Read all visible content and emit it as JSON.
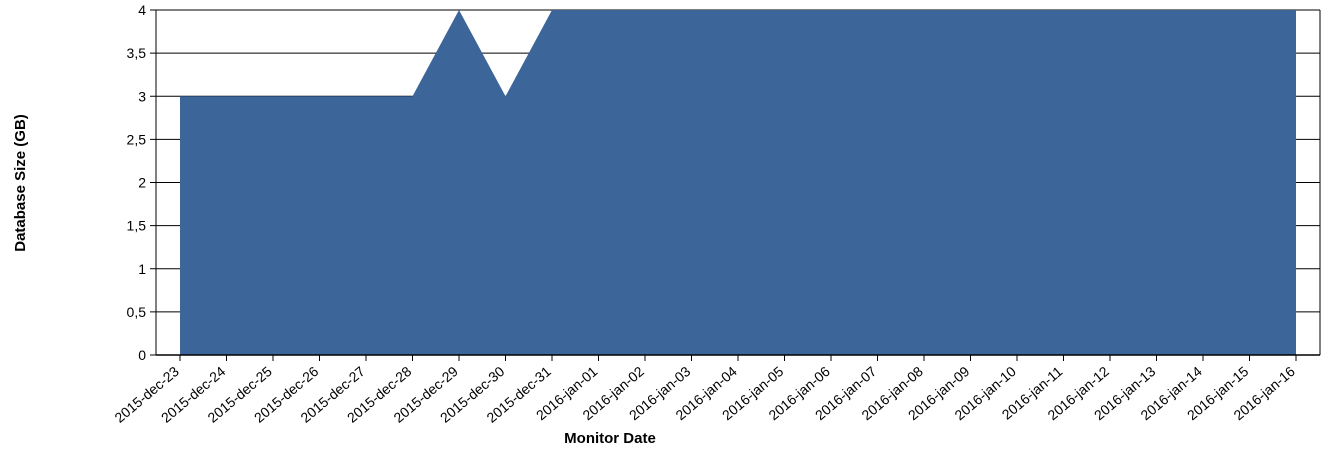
{
  "chart_data": {
    "type": "area",
    "title": "",
    "xlabel": "Monitor Date",
    "ylabel": "Database Size (GB)",
    "ylim": [
      0,
      4
    ],
    "yticks": [
      "0",
      "0,5",
      "1",
      "1,5",
      "2",
      "2,5",
      "3",
      "3,5",
      "4"
    ],
    "grid": true,
    "color": "#3c6699",
    "categories": [
      "2015-dec-23",
      "2015-dec-24",
      "2015-dec-25",
      "2015-dec-26",
      "2015-dec-27",
      "2015-dec-28",
      "2015-dec-29",
      "2015-dec-30",
      "2015-dec-31",
      "2016-jan-01",
      "2016-jan-02",
      "2016-jan-03",
      "2016-jan-04",
      "2016-jan-05",
      "2016-jan-06",
      "2016-jan-07",
      "2016-jan-08",
      "2016-jan-09",
      "2016-jan-10",
      "2016-jan-11",
      "2016-jan-12",
      "2016-jan-13",
      "2016-jan-14",
      "2016-jan-15",
      "2016-jan-16"
    ],
    "values": [
      3,
      3,
      3,
      3,
      3,
      3,
      4,
      3,
      4,
      4,
      4,
      4,
      4,
      4,
      4,
      4,
      4,
      4,
      4,
      4,
      4,
      4,
      4,
      4,
      4
    ]
  }
}
